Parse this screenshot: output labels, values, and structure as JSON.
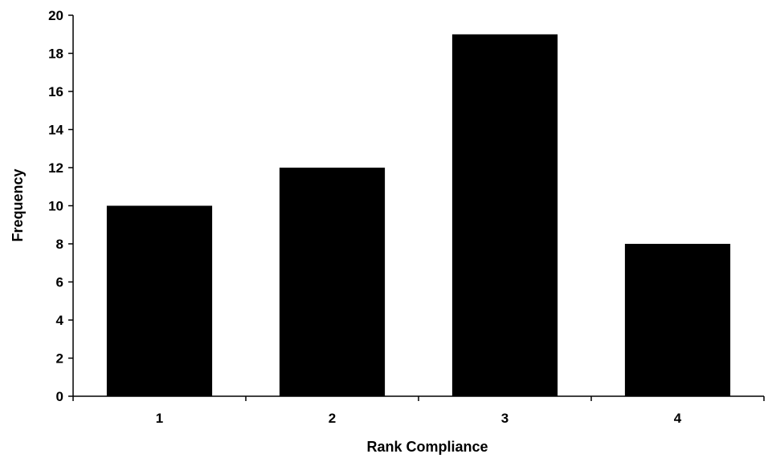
{
  "chart_data": {
    "type": "bar",
    "categories": [
      "1",
      "2",
      "3",
      "4"
    ],
    "values": [
      10,
      12,
      19,
      8
    ],
    "title": "",
    "xlabel": "Rank Compliance",
    "ylabel": "Frequency",
    "ylim": [
      0,
      20
    ],
    "yticks": [
      "0",
      "2",
      "4",
      "6",
      "8",
      "10",
      "12",
      "14",
      "16",
      "18",
      "20"
    ],
    "grid": false,
    "legend": "none",
    "bar_color": "#000000",
    "axis_color": "#000000"
  }
}
